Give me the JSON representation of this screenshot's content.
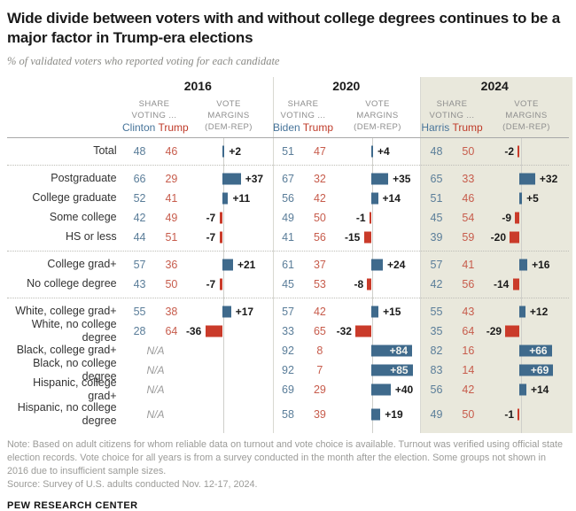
{
  "title": "Wide divide between voters with and without college degrees continues to be a major factor in Trump-era elections",
  "subtitle": "% of validated voters who reported voting for each candidate",
  "note": "Note: Based on adult citizens for whom reliable data on turnout and vote choice is available. Turnout was verified using official state election records. Vote choice for all years is from a survey conducted in the month after the election. Some groups not shown in 2016 due to insufficient sample sizes.",
  "source": "Source: Survey of U.S. adults conducted Nov. 12-17, 2024.",
  "footer": "PEW RESEARCH CENTER",
  "colors": {
    "dem_bar": "#3f6a8c",
    "rep_bar": "#ca3b2a",
    "dem_text": "#5a7d99",
    "rep_text": "#c75c4c",
    "dem_name": "#47749a",
    "rep_name": "#bf3a28",
    "panel_2024": "#e9e8dc"
  },
  "chart_data": {
    "type": "bar",
    "title": "Wide divide between voters with and without college degrees continues to be a major factor in Trump-era elections",
    "subtitle": "% of validated voters who reported voting for each candidate",
    "legend_note": "Vote margins are Dem minus Rep; blue bars = Dem advantage, red bars = Rep advantage; 2024 column highlighted",
    "na_label": "N/A",
    "col_headers": {
      "share_lines": [
        "SHARE",
        "VOTING ..."
      ],
      "margin_lines": [
        "VOTE",
        "MARGINS",
        "(DEM-REP)"
      ]
    },
    "years": [
      {
        "label": "2016",
        "dem_candidate": "Clinton",
        "rep_candidate": "Trump",
        "highlighted": false
      },
      {
        "label": "2020",
        "dem_candidate": "Biden",
        "rep_candidate": "Trump",
        "highlighted": false
      },
      {
        "label": "2024",
        "dem_candidate": "Harris",
        "rep_candidate": "Trump",
        "highlighted": true
      }
    ],
    "value_format": "[dem_share_pct, rep_share_pct, margin_dem_minus_rep] per year; null = N/A",
    "groups": [
      {
        "rows": [
          {
            "label": "Total",
            "values": [
              [
                48,
                46,
                2
              ],
              [
                51,
                47,
                4
              ],
              [
                48,
                50,
                -2
              ]
            ]
          }
        ]
      },
      {
        "rows": [
          {
            "label": "Postgraduate",
            "values": [
              [
                66,
                29,
                37
              ],
              [
                67,
                32,
                35
              ],
              [
                65,
                33,
                32
              ]
            ]
          },
          {
            "label": "College graduate",
            "values": [
              [
                52,
                41,
                11
              ],
              [
                56,
                42,
                14
              ],
              [
                51,
                46,
                5
              ]
            ]
          },
          {
            "label": "Some college",
            "values": [
              [
                42,
                49,
                -7
              ],
              [
                49,
                50,
                -1
              ],
              [
                45,
                54,
                -9
              ]
            ]
          },
          {
            "label": "HS or less",
            "values": [
              [
                44,
                51,
                -7
              ],
              [
                41,
                56,
                -15
              ],
              [
                39,
                59,
                -20
              ]
            ]
          }
        ]
      },
      {
        "rows": [
          {
            "label": "College grad+",
            "values": [
              [
                57,
                36,
                21
              ],
              [
                61,
                37,
                24
              ],
              [
                57,
                41,
                16
              ]
            ]
          },
          {
            "label": "No college degree",
            "values": [
              [
                43,
                50,
                -7
              ],
              [
                45,
                53,
                -8
              ],
              [
                42,
                56,
                -14
              ]
            ]
          }
        ]
      },
      {
        "rows": [
          {
            "label": "White, college grad+",
            "values": [
              [
                55,
                38,
                17
              ],
              [
                57,
                42,
                15
              ],
              [
                55,
                43,
                12
              ]
            ]
          },
          {
            "label": "White, no college degree",
            "values": [
              [
                28,
                64,
                -36
              ],
              [
                33,
                65,
                -32
              ],
              [
                35,
                64,
                -29
              ]
            ]
          },
          {
            "label": "Black, college grad+",
            "values": [
              null,
              [
                92,
                8,
                84
              ],
              [
                82,
                16,
                66
              ]
            ]
          },
          {
            "label": "Black, no college degree",
            "values": [
              null,
              [
                92,
                7,
                85
              ],
              [
                83,
                14,
                69
              ]
            ]
          },
          {
            "label": "Hispanic, college grad+",
            "values": [
              null,
              [
                69,
                29,
                40
              ],
              [
                56,
                42,
                14
              ]
            ]
          },
          {
            "label": "Hispanic, no college degree",
            "values": [
              null,
              [
                58,
                39,
                19
              ],
              [
                49,
                50,
                -1
              ]
            ]
          }
        ]
      }
    ]
  }
}
